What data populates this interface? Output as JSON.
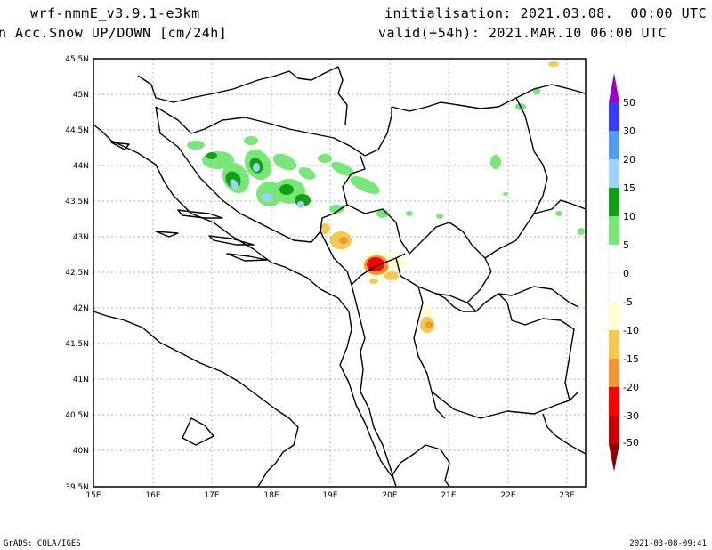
{
  "header": {
    "model": "wrf-nmmE_v3.9.1-e3km",
    "field": "n Acc.Snow UP/DOWN [cm/24h]",
    "init": "initialisation: 2021.03.08.  00:00 UTC",
    "valid": "valid(+54h): 2021.MAR.10 06:00 UTC"
  },
  "map": {
    "lon_range": [
      15,
      23.3
    ],
    "lat_range": [
      39.5,
      45.5
    ],
    "lat_ticks": [
      "45.5N",
      "45N",
      "44.5N",
      "44N",
      "43.5N",
      "43N",
      "42.5N",
      "42N",
      "41.5N",
      "41N",
      "40.5N",
      "40N",
      "39.5N"
    ],
    "lon_ticks": [
      "15E",
      "16E",
      "17E",
      "18E",
      "19E",
      "20E",
      "21E",
      "22E",
      "23E"
    ],
    "grid": true
  },
  "legend": {
    "labels": [
      "50",
      "30",
      "20",
      "15",
      "10",
      "5",
      "0",
      "-5",
      "-10",
      "-15",
      "-20",
      "-30",
      "-50"
    ],
    "colors": [
      "#a000c8",
      "#3a3aff",
      "#4ea0f0",
      "#a0d2ff",
      "#14a014",
      "#78e678",
      "#ffffff",
      "#ffffd2",
      "#f5c850",
      "#f09632",
      "#ff0000",
      "#c80000",
      "#8b0000"
    ]
  },
  "footer": {
    "left": "GrADS: COLA/IGES",
    "right": "2021-03-08-09:41"
  }
}
